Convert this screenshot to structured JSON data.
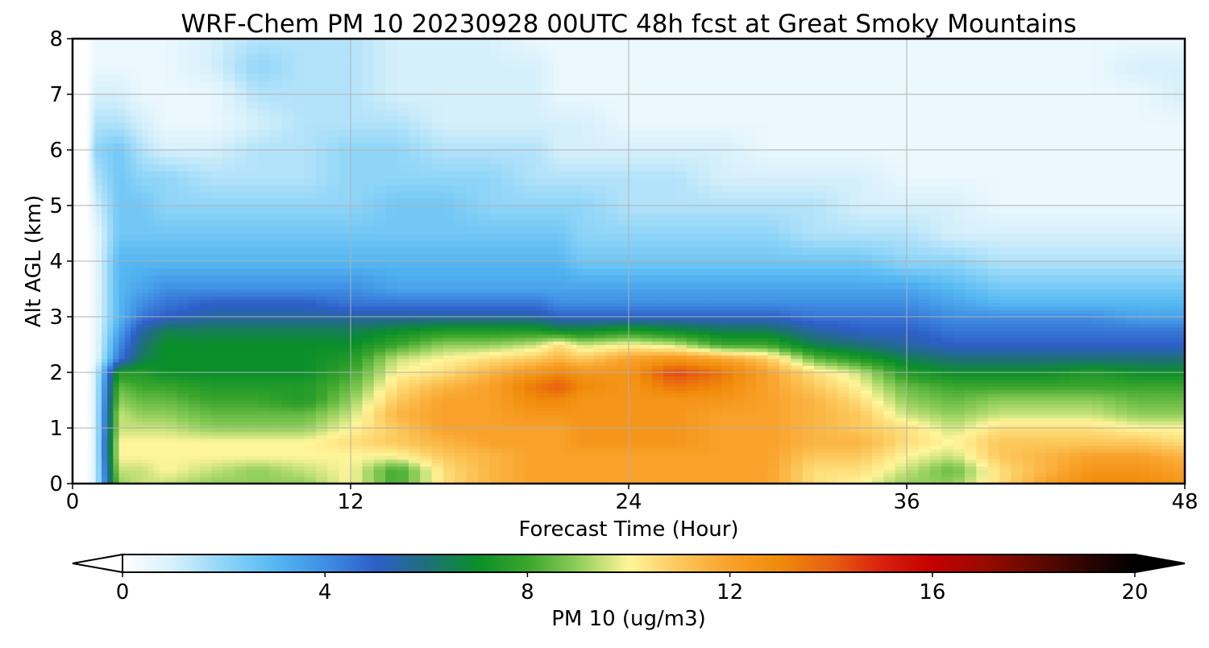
{
  "chart_data": {
    "type": "heatmap",
    "title": "WRF-Chem PM 10  20230928 00UTC 48h fcst at Great Smoky Mountains",
    "xlabel": "Forecast Time (Hour)",
    "ylabel": "Alt AGL (km)",
    "xlim": [
      0,
      48
    ],
    "ylim": [
      0,
      8
    ],
    "xticks": [
      0,
      12,
      24,
      36,
      48
    ],
    "yticks": [
      0,
      1,
      2,
      3,
      4,
      5,
      6,
      7,
      8
    ],
    "grid": true,
    "colorbar": {
      "label": "PM 10  (ug/m3)",
      "range": [
        0,
        20
      ],
      "ticks": [
        0,
        4,
        8,
        12,
        16,
        20
      ],
      "extend": "both",
      "orientation": "horizontal",
      "color_stops": [
        {
          "value": 0,
          "color": "#ffffff"
        },
        {
          "value": 1,
          "color": "#d6f0fb"
        },
        {
          "value": 2,
          "color": "#8fd5f8"
        },
        {
          "value": 3,
          "color": "#55b8f2"
        },
        {
          "value": 4,
          "color": "#3f8ee3"
        },
        {
          "value": 5,
          "color": "#2e5fc8"
        },
        {
          "value": 6,
          "color": "#1f6f7a"
        },
        {
          "value": 7,
          "color": "#0a8f2a"
        },
        {
          "value": 8,
          "color": "#3aa52c"
        },
        {
          "value": 9,
          "color": "#8fce5a"
        },
        {
          "value": 10,
          "color": "#fff59a"
        },
        {
          "value": 11,
          "color": "#fcc85c"
        },
        {
          "value": 12,
          "color": "#f9a12a"
        },
        {
          "value": 13,
          "color": "#f08a0a"
        },
        {
          "value": 14,
          "color": "#e85f10"
        },
        {
          "value": 15,
          "color": "#d8200e"
        },
        {
          "value": 16,
          "color": "#c40000"
        },
        {
          "value": 17,
          "color": "#9a0a00"
        },
        {
          "value": 18,
          "color": "#650a00"
        },
        {
          "value": 19,
          "color": "#300500"
        },
        {
          "value": 20,
          "color": "#000000"
        }
      ]
    },
    "hours": [
      0,
      0.6,
      1,
      2,
      3,
      4,
      6,
      8,
      10,
      12,
      14,
      16,
      18,
      20,
      21,
      22,
      24,
      26,
      28,
      30,
      32,
      34,
      36,
      38,
      40,
      42,
      44,
      46,
      48
    ],
    "altitudes_km": [
      0,
      0.25,
      0.5,
      0.75,
      1,
      1.25,
      1.5,
      1.75,
      2,
      2.25,
      2.5,
      2.75,
      3,
      3.25,
      3.5,
      4,
      4.5,
      5,
      5.5,
      6,
      6.5,
      7,
      7.5,
      8
    ],
    "values": [
      [
        0.0,
        0.0,
        1.0,
        9.0,
        9.5,
        9.5,
        9.0,
        9.0,
        9.0,
        10.0,
        8.0,
        10.5,
        11.5,
        12.0,
        12.0,
        12.0,
        12.0,
        12.0,
        12.0,
        12.0,
        10.5,
        10.0,
        9.0,
        9.0,
        10.5,
        12.0,
        13.0,
        13.0,
        12.5
      ],
      [
        0.0,
        0.0,
        1.0,
        9.5,
        9.5,
        10.0,
        9.5,
        9.0,
        9.5,
        10.0,
        8.0,
        10.5,
        11.5,
        12.0,
        12.0,
        12.0,
        12.0,
        12.0,
        12.0,
        12.0,
        10.5,
        10.5,
        9.5,
        8.5,
        10.5,
        11.5,
        12.5,
        12.5,
        12.0
      ],
      [
        0.0,
        0.0,
        1.0,
        10.0,
        10.0,
        10.0,
        10.0,
        10.0,
        10.0,
        10.0,
        10.0,
        11.0,
        11.5,
        12.0,
        12.0,
        12.0,
        12.0,
        12.0,
        12.0,
        12.0,
        11.0,
        11.0,
        10.0,
        9.5,
        11.0,
        11.5,
        12.0,
        12.0,
        11.5
      ],
      [
        0.0,
        0.0,
        1.0,
        10.0,
        10.0,
        10.0,
        10.0,
        10.0,
        10.0,
        10.5,
        11.0,
        11.5,
        12.0,
        12.0,
        12.0,
        12.5,
        12.5,
        12.5,
        12.0,
        12.0,
        11.5,
        11.5,
        10.5,
        10.0,
        11.0,
        11.0,
        11.0,
        11.0,
        10.5
      ],
      [
        0.0,
        0.0,
        1.0,
        9.5,
        9.5,
        9.5,
        9.0,
        9.0,
        9.0,
        10.0,
        11.0,
        12.0,
        12.0,
        12.0,
        12.0,
        12.5,
        12.5,
        12.5,
        12.0,
        12.0,
        11.5,
        11.0,
        10.5,
        9.5,
        10.5,
        10.5,
        10.5,
        10.0,
        10.0
      ],
      [
        0.0,
        0.0,
        1.0,
        9.5,
        9.0,
        9.0,
        8.5,
        8.5,
        8.5,
        9.5,
        11.5,
        12.0,
        12.0,
        12.5,
        12.5,
        12.5,
        12.5,
        12.5,
        12.0,
        12.0,
        11.5,
        11.0,
        9.5,
        9.0,
        9.5,
        9.5,
        9.5,
        9.0,
        9.0
      ],
      [
        0.0,
        0.0,
        1.0,
        9.0,
        8.5,
        8.5,
        8.0,
        8.0,
        7.5,
        9.0,
        11.0,
        12.0,
        12.0,
        13.0,
        13.0,
        12.5,
        12.5,
        12.5,
        12.5,
        12.0,
        11.5,
        10.5,
        9.0,
        8.5,
        9.0,
        9.0,
        9.0,
        8.5,
        8.5
      ],
      [
        0.0,
        0.0,
        1.0,
        8.5,
        8.0,
        8.0,
        7.5,
        7.5,
        7.5,
        8.5,
        10.5,
        11.5,
        12.0,
        13.5,
        14.0,
        13.0,
        12.5,
        13.5,
        13.0,
        12.0,
        11.0,
        10.0,
        8.5,
        8.0,
        8.0,
        8.0,
        8.0,
        8.0,
        8.0
      ],
      [
        0.0,
        0.0,
        1.0,
        7.5,
        7.5,
        7.0,
        7.0,
        7.0,
        7.0,
        8.0,
        10.0,
        10.5,
        11.5,
        12.5,
        13.0,
        12.5,
        12.5,
        14.5,
        13.5,
        12.0,
        10.5,
        9.5,
        7.5,
        7.0,
        7.0,
        7.0,
        7.5,
        7.0,
        7.0
      ],
      [
        0.0,
        0.0,
        0.5,
        4.5,
        6.5,
        7.0,
        7.0,
        7.0,
        7.0,
        7.5,
        9.5,
        10.0,
        10.5,
        11.0,
        11.5,
        11.0,
        12.0,
        12.5,
        12.0,
        11.0,
        8.5,
        7.5,
        6.5,
        6.0,
        6.0,
        6.0,
        6.0,
        6.0,
        6.0
      ],
      [
        0.0,
        0.0,
        0.5,
        4.0,
        6.0,
        7.0,
        7.0,
        7.0,
        7.0,
        7.0,
        8.0,
        9.0,
        9.0,
        9.5,
        10.5,
        9.5,
        10.0,
        9.5,
        8.0,
        8.0,
        6.5,
        6.0,
        5.5,
        5.0,
        5.0,
        5.0,
        5.0,
        5.0,
        5.0
      ],
      [
        0.0,
        0.0,
        0.5,
        3.5,
        5.5,
        6.5,
        6.5,
        6.5,
        6.5,
        6.5,
        7.0,
        7.5,
        7.5,
        7.5,
        7.0,
        7.0,
        7.5,
        7.0,
        6.5,
        6.5,
        5.5,
        5.0,
        5.0,
        4.5,
        4.5,
        4.5,
        4.5,
        4.5,
        4.5
      ],
      [
        0.0,
        0.0,
        0.5,
        3.0,
        4.5,
        5.0,
        5.5,
        5.5,
        5.5,
        5.5,
        5.5,
        5.5,
        5.5,
        5.5,
        5.0,
        5.0,
        5.0,
        5.0,
        5.0,
        5.0,
        4.5,
        4.5,
        4.5,
        4.0,
        4.0,
        4.0,
        4.0,
        3.5,
        3.5
      ],
      [
        0.0,
        0.0,
        0.5,
        3.0,
        4.0,
        4.5,
        5.0,
        5.0,
        5.0,
        4.5,
        4.5,
        4.5,
        4.5,
        4.5,
        4.0,
        4.0,
        4.0,
        4.0,
        4.0,
        4.0,
        4.0,
        4.0,
        4.0,
        3.5,
        3.0,
        3.0,
        3.0,
        3.0,
        3.0
      ],
      [
        0.0,
        0.0,
        0.5,
        3.0,
        3.5,
        4.0,
        4.0,
        4.0,
        4.0,
        4.0,
        3.5,
        3.5,
        3.5,
        3.5,
        3.5,
        3.5,
        3.5,
        3.5,
        3.5,
        3.5,
        3.5,
        3.5,
        3.5,
        3.0,
        2.5,
        2.5,
        2.5,
        2.5,
        2.5
      ],
      [
        0.0,
        0.0,
        0.5,
        3.0,
        3.0,
        3.0,
        3.0,
        3.0,
        3.0,
        3.0,
        3.0,
        3.0,
        3.0,
        3.0,
        3.0,
        2.5,
        2.5,
        2.5,
        2.5,
        2.5,
        2.5,
        2.5,
        2.0,
        2.0,
        1.5,
        1.5,
        1.5,
        1.5,
        1.5
      ],
      [
        0.0,
        0.0,
        0.5,
        2.5,
        2.5,
        2.5,
        2.5,
        2.5,
        2.5,
        2.5,
        2.5,
        2.5,
        2.5,
        2.5,
        2.5,
        2.0,
        2.0,
        2.0,
        2.0,
        2.0,
        1.5,
        1.5,
        1.5,
        1.0,
        1.0,
        1.0,
        1.0,
        1.0,
        1.0
      ],
      [
        0.0,
        0.0,
        1.0,
        2.5,
        2.5,
        2.0,
        2.0,
        2.0,
        2.0,
        2.0,
        2.5,
        2.5,
        2.0,
        2.0,
        2.0,
        2.0,
        1.5,
        1.5,
        1.5,
        1.5,
        1.5,
        1.0,
        1.0,
        1.0,
        0.5,
        0.5,
        0.5,
        0.5,
        0.5
      ],
      [
        0.0,
        0.0,
        1.5,
        2.5,
        2.0,
        2.0,
        1.5,
        1.5,
        1.5,
        2.0,
        2.0,
        2.0,
        2.0,
        1.5,
        1.5,
        1.5,
        1.5,
        1.5,
        1.0,
        1.0,
        1.0,
        1.0,
        0.5,
        0.5,
        0.5,
        0.5,
        0.5,
        0.5,
        0.5
      ],
      [
        0.0,
        0.0,
        2.0,
        2.5,
        1.5,
        1.0,
        1.0,
        1.5,
        1.5,
        2.0,
        2.0,
        1.5,
        1.5,
        1.5,
        1.0,
        1.0,
        1.0,
        1.0,
        1.0,
        0.5,
        0.5,
        0.5,
        0.5,
        0.5,
        0.5,
        0.5,
        0.5,
        0.5,
        0.5
      ],
      [
        0.0,
        0.0,
        1.5,
        1.5,
        1.0,
        0.5,
        0.5,
        1.0,
        1.5,
        1.5,
        1.5,
        1.0,
        1.0,
        1.0,
        1.0,
        1.0,
        0.5,
        0.5,
        0.5,
        0.5,
        0.5,
        0.5,
        0.5,
        0.5,
        0.5,
        0.5,
        0.5,
        0.5,
        0.5
      ],
      [
        0.0,
        0.0,
        1.0,
        1.0,
        0.5,
        0.5,
        0.5,
        1.5,
        1.5,
        1.5,
        1.0,
        1.0,
        1.0,
        1.0,
        0.5,
        0.5,
        0.5,
        0.5,
        0.5,
        0.5,
        0.5,
        0.5,
        0.5,
        0.5,
        0.5,
        0.5,
        0.5,
        0.5,
        1.0
      ],
      [
        0.0,
        0.0,
        0.5,
        0.5,
        0.5,
        0.5,
        1.0,
        2.0,
        1.5,
        1.5,
        1.0,
        1.0,
        1.0,
        1.0,
        0.5,
        0.5,
        0.5,
        0.5,
        0.5,
        0.5,
        0.5,
        0.5,
        0.5,
        0.5,
        0.5,
        0.5,
        0.5,
        1.0,
        1.0
      ],
      [
        0.0,
        0.0,
        0.5,
        0.5,
        0.5,
        0.5,
        1.0,
        1.5,
        1.5,
        1.5,
        1.0,
        1.0,
        1.0,
        0.5,
        0.5,
        0.5,
        0.5,
        0.5,
        0.5,
        0.5,
        0.5,
        0.5,
        0.5,
        0.5,
        0.5,
        0.5,
        0.5,
        0.5,
        0.5
      ]
    ]
  }
}
